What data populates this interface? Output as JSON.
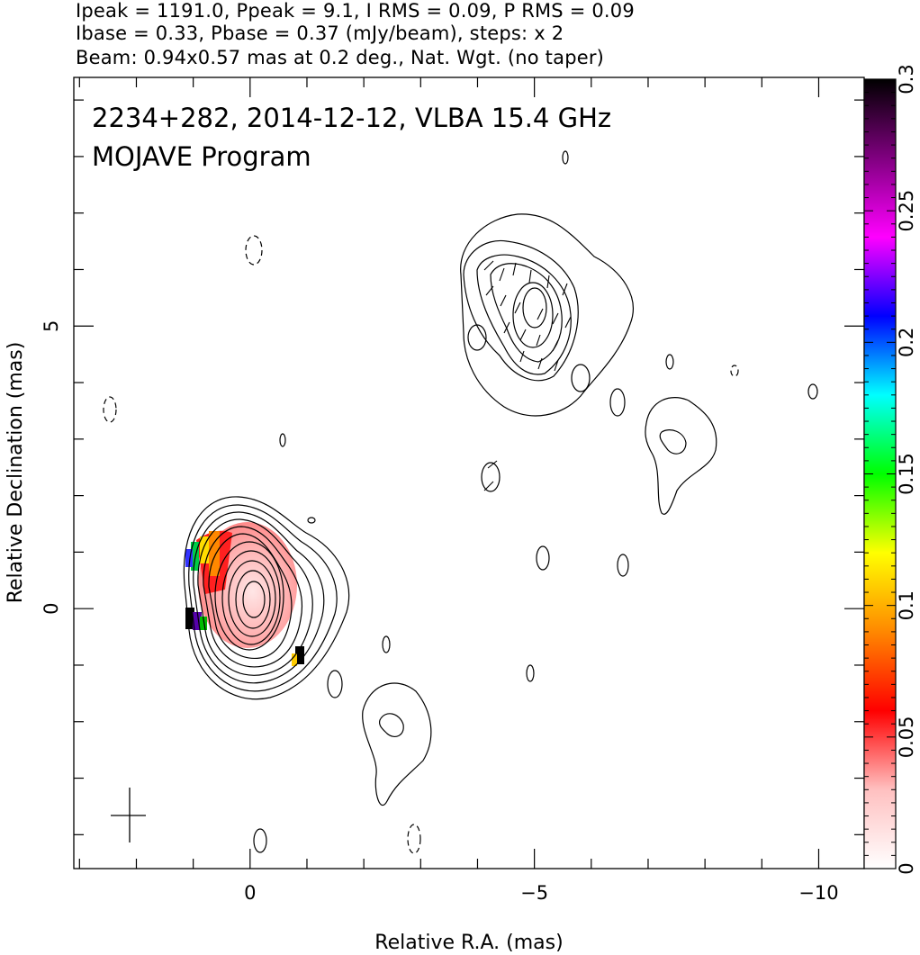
{
  "header": {
    "line1": "Ipeak = 1191.0, Ppeak = 9.1, I RMS = 0.09, P RMS = 0.09",
    "line2": "Ibase = 0.33, Pbase = 0.37 (mJy/beam), steps: x 2",
    "line3": "Beam: 0.94x0.57 mas at 0.2 deg., Nat. Wgt. (no taper)"
  },
  "chart_data": {
    "type": "heatmap",
    "title": "2234+282, 2014-12-12, VLBA 15.4 GHz",
    "subtitle": "MOJAVE Program",
    "xlabel": "Relative R.A. (mas)",
    "ylabel": "Relative Declination (mas)",
    "xlim": [
      3.1,
      -10.8
    ],
    "ylim": [
      -4.6,
      9.4
    ],
    "x_ticks": [
      0,
      -5,
      -10
    ],
    "x_tick_labels": [
      "0",
      "−5",
      "−10"
    ],
    "y_ticks": [
      0,
      5
    ],
    "y_tick_labels": [
      "0",
      "5"
    ],
    "colorbar": {
      "range": [
        0,
        0.3
      ],
      "ticks": [
        0,
        0.05,
        0.1,
        0.15,
        0.2,
        0.25,
        0.3
      ],
      "tick_labels": [
        "0",
        "0.05",
        "0.1",
        "0.15",
        "0.2",
        "0.25",
        "0.3"
      ],
      "colors": [
        "#ffffff",
        "#ffc0c0",
        "#ff0000",
        "#ff8800",
        "#ffff00",
        "#00ff00",
        "#00ffff",
        "#0000ff",
        "#ff00ff",
        "#000000"
      ]
    },
    "beam": {
      "major_mas": 0.94,
      "minor_mas": 0.57,
      "pa_deg": 0.2
    },
    "core": {
      "x": -0.1,
      "y": 0.3
    },
    "jet_component": {
      "x": -4.8,
      "y": 5.3
    },
    "contour_levels_mjy_per_beam": [
      0.33,
      0.66,
      1.32,
      2.64,
      5.28,
      10.56,
      21.12,
      42.24,
      84.48,
      168.96,
      337.92,
      675.84
    ]
  }
}
